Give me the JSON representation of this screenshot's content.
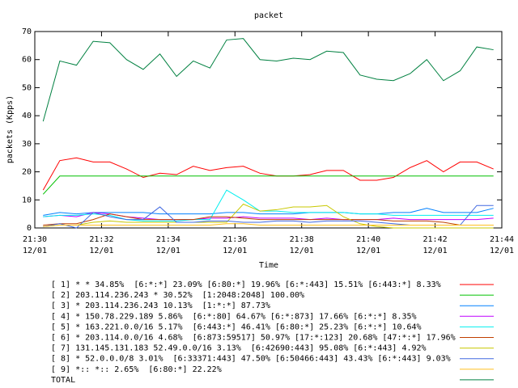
{
  "chart_data": {
    "type": "line",
    "title": "packet",
    "x_label": "Time",
    "y_label": "packets (Kpps)",
    "xlim": [
      0,
      14
    ],
    "xticks": [
      {
        "value": 0,
        "label": "21:30 12/01"
      },
      {
        "value": 2,
        "label": "21:32 12/01"
      },
      {
        "value": 4,
        "label": "21:34 12/01"
      },
      {
        "value": 6,
        "label": "21:36 12/01"
      },
      {
        "value": 8,
        "label": "21:38 12/01"
      },
      {
        "value": 10,
        "label": "21:40 12/01"
      },
      {
        "value": 12,
        "label": "21:42 12/01"
      },
      {
        "value": 14,
        "label": "21:44 12/01"
      }
    ],
    "ylim": [
      0,
      70
    ],
    "yticks": [
      0,
      10,
      20,
      30,
      40,
      50,
      60,
      70
    ],
    "x": [
      0.25,
      0.75,
      1.25,
      1.75,
      2.25,
      2.75,
      3.25,
      3.75,
      4.25,
      4.75,
      5.25,
      5.75,
      6.25,
      6.75,
      7.25,
      7.75,
      8.25,
      8.75,
      9.25,
      9.75,
      10.25,
      10.75,
      11.25,
      11.75,
      12.25,
      12.75,
      13.25,
      13.75
    ],
    "series": [
      {
        "name": "[ 1] * * 34.85%  [6:*:*] 23.09% [6:80:*] 19.96% [6:*:443] 15.51% [6:443:*] 8.33%",
        "color": "#ff0000",
        "values": [
          13.5,
          24,
          25,
          23.5,
          23.5,
          21,
          18,
          19.5,
          19,
          22,
          20.5,
          21.5,
          22,
          19.5,
          18.5,
          18.5,
          19,
          20.5,
          20.5,
          17,
          17,
          18,
          21.5,
          24,
          20,
          23.5,
          23.5,
          21
        ]
      },
      {
        "name": "[ 2] 203.114.236.243 * 30.52%  [1:2048:2048] 100.00%",
        "color": "#00c000",
        "values": [
          12,
          18.5,
          18.5,
          18.5,
          18.5,
          18.5,
          18.5,
          18.5,
          18.5,
          18.5,
          18.5,
          18.5,
          18.5,
          18.5,
          18.5,
          18.5,
          18.5,
          18.5,
          18.5,
          18.5,
          18.5,
          18.5,
          18.5,
          18.5,
          18.5,
          18.5,
          18.5,
          18.5
        ]
      },
      {
        "name": "[ 3] * 203.114.236.243 10.13%  [1:*:*] 87.73%",
        "color": "#0080ff",
        "values": [
          4.5,
          5.5,
          5,
          5.5,
          5.5,
          5.5,
          5.5,
          5,
          5,
          5,
          5,
          5.5,
          5.5,
          5,
          5,
          5,
          5.5,
          5.5,
          5.5,
          5,
          5,
          5.5,
          5.5,
          7,
          5.5,
          5.5,
          5.5,
          7
        ]
      },
      {
        "name": "[ 4] * 150.78.229.189 5.86%  [6:*:80] 64.67% [6:*:873] 17.66% [6:*:*] 8.35%",
        "color": "#c000ff",
        "values": [
          4,
          4.5,
          4,
          5.5,
          5,
          4,
          3.5,
          3,
          3,
          3,
          3.5,
          3.5,
          4,
          3.5,
          3.5,
          3.5,
          3,
          3.5,
          3,
          3,
          3,
          3.5,
          3,
          3,
          3,
          3,
          3,
          3.5
        ]
      },
      {
        "name": "[ 5] * 163.221.0.0/16 5.17%  [6:443:*] 46.41% [6:80:*] 25.23% [6:*:*] 10.64%",
        "color": "#00eeee",
        "values": [
          4,
          4.5,
          4.5,
          5,
          4.5,
          3,
          2.5,
          2.5,
          2.5,
          3,
          3,
          13.5,
          10,
          6,
          6,
          5.5,
          5.5,
          5.5,
          5.5,
          5,
          5,
          4.5,
          4.5,
          4.5,
          4.5,
          4.5,
          4.5,
          4.5
        ]
      },
      {
        "name": "[ 6] * 203.114.0.0/16 4.68%  [6:873:59517] 50.97% [17:*:123] 20.68% [47:*:*] 17.96%",
        "color": "#c04000",
        "values": [
          1,
          1.5,
          1.5,
          3,
          5,
          4,
          3,
          3,
          3,
          3,
          4,
          4,
          3.5,
          3,
          3,
          3,
          3,
          3,
          3,
          3,
          3,
          2.5,
          2.5,
          2.5,
          2,
          1,
          1,
          1
        ]
      },
      {
        "name": "[ 7] 131.145.131.183 52.49.0.0/16 3.13%  [6:42690:443] 95.08% [6:*:443] 4.92%",
        "color": "#c8c800",
        "values": [
          0.5,
          1,
          1,
          2,
          2.5,
          2,
          2,
          2,
          2,
          2,
          2,
          2,
          8.5,
          6,
          6.5,
          7.5,
          7.5,
          8,
          4,
          1.5,
          0.5,
          0,
          0,
          0,
          0,
          0,
          0,
          0
        ]
      },
      {
        "name": "[ 8] * 52.0.0.0/8 3.01%  [6:33371:443] 47.50% [6:50466:443] 43.43% [6:*:443] 9.03%",
        "color": "#4169e1",
        "values": [
          0.5,
          1.5,
          0,
          5.5,
          4,
          3,
          3,
          7.5,
          2,
          2,
          2.5,
          2.5,
          2,
          2,
          2.5,
          2.5,
          2,
          2.5,
          2.5,
          2.5,
          2,
          1.5,
          1,
          1,
          1,
          1,
          8,
          8
        ]
      },
      {
        "name": "[ 9] *:: *:: 2.65%  [6:80:*] 22.22%",
        "color": "#ffc020",
        "values": [
          0.5,
          1,
          1,
          1,
          1,
          1,
          1,
          1,
          1,
          1,
          1,
          1.5,
          1.5,
          1,
          1,
          1,
          1,
          1,
          1,
          1,
          1,
          1,
          1,
          1,
          1,
          1,
          1,
          1
        ]
      },
      {
        "name": "TOTAL",
        "color": "#008040",
        "values": [
          38,
          59.5,
          58,
          66.5,
          66,
          60,
          56.5,
          62,
          54,
          59.5,
          57,
          67,
          67.5,
          60,
          59.5,
          60.5,
          60,
          63,
          62.5,
          54.5,
          53,
          52.5,
          55,
          60,
          52.5,
          56,
          64.5,
          63.5
        ]
      }
    ]
  }
}
